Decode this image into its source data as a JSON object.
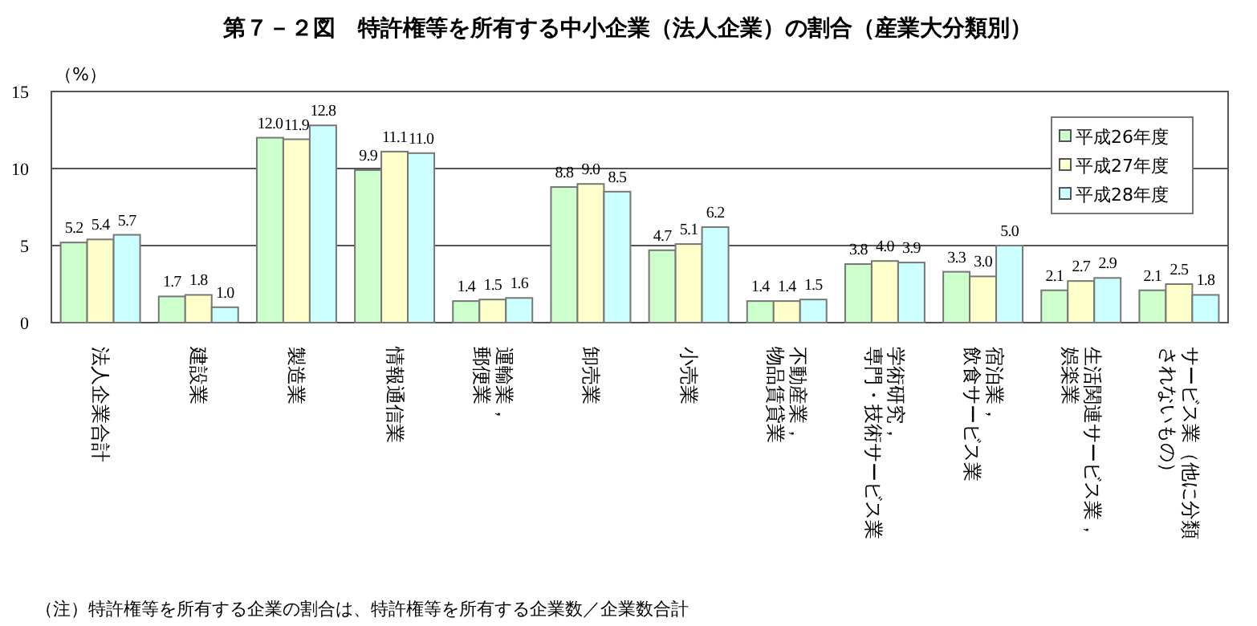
{
  "chart_data": {
    "type": "bar",
    "title": "第７－２図　特許権等を所有する中小企業（法人企業）の割合（産業大分類別）",
    "ylabel": "（%）",
    "categories": [
      "法人企業合計",
      "建設業",
      "製造業",
      "情報通信業",
      "運輸業，郵便業",
      "卸売業",
      "小売業",
      "不動産業，物品賃貸業",
      "学術研究，専門・技術サービス業",
      "宿泊業，飲食サービス業",
      "生活関連サービス業，娯楽業",
      "サービス業（他に分類されないもの）"
    ],
    "series": [
      {
        "name": "平成26年度",
        "color": "#ccffcc",
        "values": [
          5.2,
          1.7,
          12.0,
          9.9,
          1.4,
          8.8,
          4.7,
          1.4,
          3.8,
          3.3,
          2.1,
          2.1
        ],
        "value_labels": [
          "5.2",
          "1.7",
          "12.0",
          "9.9",
          "1.4",
          "8.8",
          "4.7",
          "1.4",
          "3.8",
          "3.3",
          "2.1",
          "2.1"
        ]
      },
      {
        "name": "平成27年度",
        "color": "#ffffcc",
        "values": [
          5.4,
          1.8,
          11.9,
          11.1,
          1.5,
          9.0,
          5.1,
          1.4,
          4.0,
          3.0,
          2.7,
          2.5
        ],
        "value_labels": [
          "5.4",
          "1.8",
          "11.9",
          "11.1",
          "1.5",
          "9.0",
          "5.1",
          "1.4",
          "4.0",
          "3.0",
          "2.7",
          "2.5"
        ]
      },
      {
        "name": "平成28年度",
        "color": "#ccffff",
        "values": [
          5.7,
          1.0,
          12.8,
          11.0,
          1.6,
          8.5,
          6.2,
          1.5,
          3.9,
          5.0,
          2.9,
          1.8
        ],
        "value_labels": [
          "5.7",
          "1.0",
          "12.8",
          "11.0",
          "1.6",
          "8.5",
          "6.2",
          "1.5",
          "3.9",
          "5.0",
          "2.9",
          "1.8"
        ]
      }
    ],
    "ylim": [
      0,
      15
    ],
    "yticks": [
      0,
      5,
      10,
      15
    ],
    "grid": "y",
    "legend": "top right",
    "annotations": [
      "（注）特許権等を所有する企業の割合は、特許権等を所有する企業数／企業数合計"
    ]
  }
}
